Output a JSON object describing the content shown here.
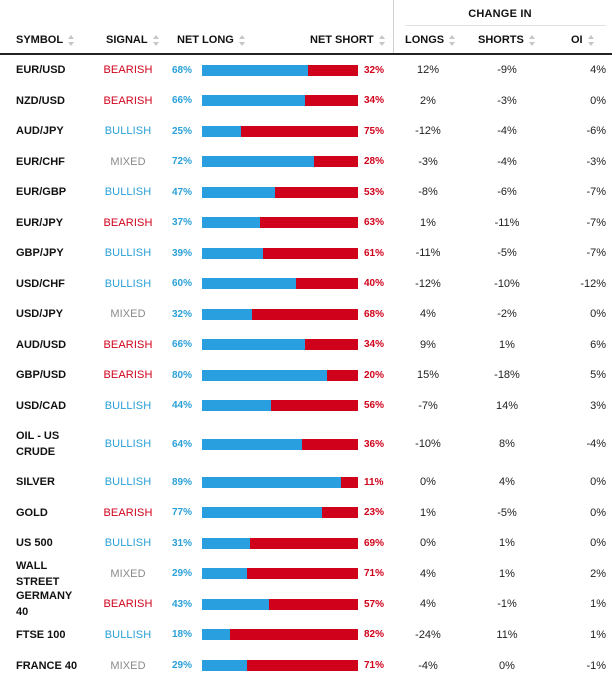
{
  "header": {
    "symbol": "SYMBOL",
    "signal": "SIGNAL",
    "net_long": "NET LONG",
    "net_short": "NET SHORT",
    "change_in": "CHANGE IN",
    "longs": "LONGS",
    "shorts": "SHORTS",
    "oi": "OI"
  },
  "colors": {
    "bullish": "#2aa0d8",
    "bearish": "#d0021b",
    "mixed": "#8a8a8a",
    "long_bar": "#2a9fe0",
    "short_bar": "#d0021b"
  },
  "rows": [
    {
      "symbol": "EUR/USD",
      "signal": "BEARISH",
      "net_long": "68%",
      "net_short": "32%",
      "long_pct": 68,
      "longs": "12%",
      "shorts": "-9%",
      "oi": "4%"
    },
    {
      "symbol": "NZD/USD",
      "signal": "BEARISH",
      "net_long": "66%",
      "net_short": "34%",
      "long_pct": 66,
      "longs": "2%",
      "shorts": "-3%",
      "oi": "0%"
    },
    {
      "symbol": "AUD/JPY",
      "signal": "BULLISH",
      "net_long": "25%",
      "net_short": "75%",
      "long_pct": 25,
      "longs": "-12%",
      "shorts": "-4%",
      "oi": "-6%"
    },
    {
      "symbol": "EUR/CHF",
      "signal": "MIXED",
      "net_long": "72%",
      "net_short": "28%",
      "long_pct": 72,
      "longs": "-3%",
      "shorts": "-4%",
      "oi": "-3%"
    },
    {
      "symbol": "EUR/GBP",
      "signal": "BULLISH",
      "net_long": "47%",
      "net_short": "53%",
      "long_pct": 47,
      "longs": "-8%",
      "shorts": "-6%",
      "oi": "-7%"
    },
    {
      "symbol": "EUR/JPY",
      "signal": "BEARISH",
      "net_long": "37%",
      "net_short": "63%",
      "long_pct": 37,
      "longs": "1%",
      "shorts": "-11%",
      "oi": "-7%"
    },
    {
      "symbol": "GBP/JPY",
      "signal": "BULLISH",
      "net_long": "39%",
      "net_short": "61%",
      "long_pct": 39,
      "longs": "-11%",
      "shorts": "-5%",
      "oi": "-7%"
    },
    {
      "symbol": "USD/CHF",
      "signal": "BULLISH",
      "net_long": "60%",
      "net_short": "40%",
      "long_pct": 60,
      "longs": "-12%",
      "shorts": "-10%",
      "oi": "-12%"
    },
    {
      "symbol": "USD/JPY",
      "signal": "MIXED",
      "net_long": "32%",
      "net_short": "68%",
      "long_pct": 32,
      "longs": "4%",
      "shorts": "-2%",
      "oi": "0%"
    },
    {
      "symbol": "AUD/USD",
      "signal": "BEARISH",
      "net_long": "66%",
      "net_short": "34%",
      "long_pct": 66,
      "longs": "9%",
      "shorts": "1%",
      "oi": "6%"
    },
    {
      "symbol": "GBP/USD",
      "signal": "BEARISH",
      "net_long": "80%",
      "net_short": "20%",
      "long_pct": 80,
      "longs": "15%",
      "shorts": "-18%",
      "oi": "5%"
    },
    {
      "symbol": "USD/CAD",
      "signal": "BULLISH",
      "net_long": "44%",
      "net_short": "56%",
      "long_pct": 44,
      "longs": "-7%",
      "shorts": "14%",
      "oi": "3%"
    },
    {
      "symbol": "OIL - US CRUDE",
      "signal": "BULLISH",
      "net_long": "64%",
      "net_short": "36%",
      "long_pct": 64,
      "longs": "-10%",
      "shorts": "8%",
      "oi": "-4%"
    },
    {
      "symbol": "SILVER",
      "signal": "BULLISH",
      "net_long": "89%",
      "net_short": "11%",
      "long_pct": 89,
      "longs": "0%",
      "shorts": "4%",
      "oi": "0%"
    },
    {
      "symbol": "GOLD",
      "signal": "BEARISH",
      "net_long": "77%",
      "net_short": "23%",
      "long_pct": 77,
      "longs": "1%",
      "shorts": "-5%",
      "oi": "0%"
    },
    {
      "symbol": "US 500",
      "signal": "BULLISH",
      "net_long": "31%",
      "net_short": "69%",
      "long_pct": 31,
      "longs": "0%",
      "shorts": "1%",
      "oi": "0%"
    },
    {
      "symbol": "WALL STREET",
      "signal": "MIXED",
      "net_long": "29%",
      "net_short": "71%",
      "long_pct": 29,
      "longs": "4%",
      "shorts": "1%",
      "oi": "2%"
    },
    {
      "symbol": "GERMANY 40",
      "signal": "BEARISH",
      "net_long": "43%",
      "net_short": "57%",
      "long_pct": 43,
      "longs": "4%",
      "shorts": "-1%",
      "oi": "1%"
    },
    {
      "symbol": "FTSE 100",
      "signal": "BULLISH",
      "net_long": "18%",
      "net_short": "82%",
      "long_pct": 18,
      "longs": "-24%",
      "shorts": "11%",
      "oi": "1%"
    },
    {
      "symbol": "FRANCE 40",
      "signal": "MIXED",
      "net_long": "29%",
      "net_short": "71%",
      "long_pct": 29,
      "longs": "-4%",
      "shorts": "0%",
      "oi": "-1%"
    }
  ]
}
